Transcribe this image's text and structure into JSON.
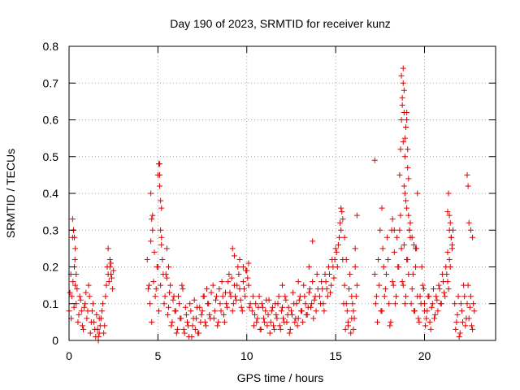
{
  "chart_data": {
    "type": "scatter",
    "title": "Day 190 of 2023, SRMTID for receiver kunz",
    "xlabel": "GPS time / hours",
    "ylabel": "SRMTID / TECUs",
    "xlim": [
      0,
      24
    ],
    "ylim": [
      0,
      0.8
    ],
    "xticks": [
      0,
      5,
      10,
      15,
      20
    ],
    "xtick_labels": [
      "0",
      "5",
      "10",
      "15",
      "20"
    ],
    "yticks": [
      0,
      0.1,
      0.2,
      0.3,
      0.4,
      0.5,
      0.6,
      0.7,
      0.8
    ],
    "ytick_labels": [
      "0",
      "0.1",
      "0.2",
      "0.3",
      "0.4",
      "0.5",
      "0.6",
      "0.7",
      "0.8"
    ],
    "grid": true,
    "marker": "+",
    "color": "#e00000",
    "series": [
      {
        "name": "SRMTID",
        "x": [
          0.0,
          0.1,
          0.15,
          0.2,
          0.25,
          0.3,
          0.35,
          0.4,
          0.5,
          0.6,
          0.7,
          0.8,
          0.9,
          1.0,
          1.1,
          1.2,
          1.3,
          1.4,
          1.5,
          1.6,
          1.7,
          1.8,
          1.9,
          2.0,
          2.1,
          2.2,
          2.3,
          2.4,
          2.5,
          0.05,
          0.12,
          0.22,
          0.28,
          0.33,
          0.45,
          0.55,
          0.65,
          0.75,
          0.85,
          0.95,
          1.05,
          1.15,
          1.25,
          1.35,
          1.45,
          1.55,
          1.65,
          1.75,
          1.85,
          1.95,
          2.05,
          2.15,
          2.25,
          2.35,
          2.45,
          0.2,
          0.25,
          0.3,
          0.35,
          0.4,
          1.6,
          1.7,
          1.65,
          2.2,
          2.3,
          2.35,
          4.4,
          4.5,
          4.6,
          4.7,
          4.8,
          4.9,
          5.0,
          5.1,
          5.2,
          5.3,
          5.4,
          5.5,
          5.6,
          5.7,
          5.8,
          5.9,
          6.0,
          6.1,
          6.2,
          6.3,
          6.4,
          6.5,
          6.6,
          6.7,
          6.8,
          6.9,
          7.0,
          7.1,
          7.2,
          7.3,
          7.4,
          7.5,
          7.6,
          7.7,
          7.8,
          7.9,
          8.0,
          4.45,
          4.55,
          4.65,
          4.75,
          4.85,
          4.95,
          5.05,
          5.15,
          5.25,
          5.35,
          5.45,
          5.55,
          5.65,
          5.75,
          5.85,
          5.95,
          6.05,
          6.15,
          6.25,
          6.35,
          6.45,
          6.55,
          6.65,
          6.75,
          6.85,
          6.95,
          7.05,
          7.15,
          7.25,
          7.35,
          7.45,
          7.55,
          7.65,
          7.75,
          7.85,
          7.95,
          4.6,
          4.65,
          4.7,
          5.0,
          5.05,
          5.1,
          5.1,
          5.15,
          5.2,
          5.15,
          5.2,
          5.5,
          5.6,
          8.1,
          8.2,
          8.3,
          8.4,
          8.5,
          8.6,
          8.7,
          8.8,
          8.9,
          9.0,
          9.1,
          9.2,
          9.3,
          9.4,
          9.5,
          9.6,
          9.7,
          9.8,
          9.9,
          10.0,
          10.1,
          10.2,
          8.15,
          8.25,
          8.35,
          8.45,
          8.55,
          8.65,
          8.75,
          8.85,
          8.95,
          9.05,
          9.15,
          9.25,
          9.35,
          9.45,
          9.55,
          9.65,
          9.75,
          9.85,
          9.95,
          10.05,
          10.15,
          9.2,
          9.3,
          9.6,
          9.8,
          10.0,
          10.1,
          10.3,
          10.4,
          10.5,
          10.6,
          10.7,
          10.8,
          10.9,
          11.0,
          11.1,
          11.2,
          11.3,
          11.4,
          11.5,
          11.6,
          11.7,
          11.8,
          11.9,
          12.0,
          12.1,
          12.2,
          12.3,
          12.4,
          12.5,
          12.6,
          12.7,
          12.8,
          12.9,
          13.0,
          13.1,
          13.2,
          13.3,
          13.4,
          13.5,
          13.6,
          13.7,
          13.8,
          13.9,
          14.0,
          10.35,
          10.45,
          10.55,
          10.65,
          10.75,
          10.85,
          10.95,
          11.05,
          11.15,
          11.25,
          11.35,
          11.45,
          11.55,
          11.65,
          11.75,
          11.85,
          11.95,
          12.05,
          12.15,
          12.25,
          12.35,
          12.45,
          12.55,
          12.65,
          12.75,
          12.85,
          12.95,
          13.05,
          13.15,
          13.25,
          13.35,
          13.45,
          13.55,
          13.65,
          13.75,
          13.85,
          13.95,
          13.7,
          13.5,
          12.9,
          12.0,
          14.1,
          14.2,
          14.3,
          14.4,
          14.5,
          14.6,
          14.7,
          14.8,
          14.9,
          15.0,
          15.1,
          15.2,
          15.3,
          15.4,
          15.5,
          15.6,
          15.7,
          15.8,
          15.9,
          16.0,
          16.1,
          16.2,
          14.15,
          14.25,
          14.35,
          14.45,
          14.55,
          14.65,
          14.75,
          14.85,
          14.95,
          15.05,
          15.15,
          15.25,
          15.35,
          15.45,
          15.55,
          15.65,
          15.75,
          15.85,
          15.95,
          16.05,
          16.15,
          15.3,
          15.4,
          15.5,
          15.6,
          15.7,
          16.1,
          16.2,
          15.9,
          16.0,
          17.2,
          17.3,
          17.4,
          17.5,
          17.6,
          17.7,
          17.8,
          17.9,
          18.0,
          18.1,
          18.2,
          18.3,
          18.4,
          18.5,
          18.6,
          18.7,
          18.8,
          18.9,
          19.0,
          19.1,
          19.2,
          19.3,
          19.4,
          19.5,
          19.6,
          19.7,
          19.8,
          19.9,
          20.0,
          17.25,
          17.35,
          17.45,
          17.55,
          17.65,
          17.75,
          17.85,
          17.95,
          18.05,
          18.15,
          18.25,
          18.35,
          18.45,
          18.55,
          18.65,
          18.75,
          18.85,
          18.95,
          19.05,
          19.15,
          19.25,
          19.35,
          19.45,
          19.55,
          19.65,
          19.75,
          19.85,
          19.95,
          17.2,
          17.6,
          18.2,
          18.3,
          18.6,
          18.65,
          18.7,
          18.7,
          18.75,
          18.8,
          18.8,
          18.85,
          18.85,
          18.9,
          18.9,
          18.95,
          19.0,
          19.0,
          19.05,
          19.05,
          19.1,
          18.8,
          18.75,
          18.85,
          18.9,
          18.95,
          19.0,
          19.1,
          19.15,
          19.2,
          19.3,
          19.4,
          19.5,
          19.6,
          20.0,
          20.1,
          20.2,
          20.3,
          20.4,
          20.5,
          20.6,
          20.7,
          20.8,
          20.9,
          21.0,
          21.1,
          21.2,
          21.3,
          21.4,
          21.5,
          21.6,
          20.05,
          20.15,
          20.25,
          20.35,
          20.45,
          20.55,
          20.65,
          20.75,
          20.85,
          20.95,
          21.05,
          21.15,
          21.25,
          21.35,
          21.45,
          21.55,
          21.3,
          21.35,
          21.4,
          21.45,
          21.4,
          21.5,
          21.55,
          21.3,
          21.7,
          21.8,
          21.9,
          22.0,
          22.1,
          22.2,
          22.3,
          22.4,
          22.5,
          22.6,
          22.7,
          22.8,
          21.75,
          21.85,
          21.95,
          22.05,
          22.15,
          22.25,
          22.35,
          22.45,
          22.55,
          22.65,
          22.75,
          22.4,
          22.45,
          22.5,
          22.6,
          22.7
        ],
        "y": [
          0.08,
          0.18,
          0.12,
          0.28,
          0.3,
          0.2,
          0.15,
          0.1,
          0.05,
          0.12,
          0.08,
          0.03,
          0.1,
          0.06,
          0.15,
          0.02,
          0.08,
          0.05,
          0.01,
          0.03,
          0.02,
          0.06,
          0.1,
          0.04,
          0.15,
          0.18,
          0.2,
          0.17,
          0.19,
          0.13,
          0.06,
          0.16,
          0.09,
          0.22,
          0.14,
          0.07,
          0.11,
          0.04,
          0.09,
          0.13,
          0.08,
          0.12,
          0.05,
          0.1,
          0.03,
          0.07,
          0.0,
          0.04,
          0.08,
          0.02,
          0.12,
          0.2,
          0.16,
          0.21,
          0.14,
          0.33,
          0.3,
          0.28,
          0.25,
          0.18,
          0.03,
          0.06,
          0.01,
          0.25,
          0.22,
          0.18,
          0.22,
          0.15,
          0.27,
          0.34,
          0.24,
          0.14,
          0.2,
          0.45,
          0.28,
          0.18,
          0.12,
          0.25,
          0.09,
          0.15,
          0.05,
          0.12,
          0.08,
          0.03,
          0.1,
          0.06,
          0.14,
          0.02,
          0.07,
          0.04,
          0.1,
          0.01,
          0.06,
          0.03,
          0.09,
          0.02,
          0.05,
          0.08,
          0.12,
          0.04,
          0.1,
          0.07,
          0.13,
          0.14,
          0.1,
          0.05,
          0.16,
          0.12,
          0.2,
          0.08,
          0.15,
          0.22,
          0.1,
          0.18,
          0.07,
          0.13,
          0.04,
          0.11,
          0.08,
          0.02,
          0.12,
          0.06,
          0.15,
          0.03,
          0.09,
          0.05,
          0.01,
          0.08,
          0.04,
          0.11,
          0.06,
          0.02,
          0.09,
          0.07,
          0.12,
          0.05,
          0.14,
          0.1,
          0.06,
          0.4,
          0.33,
          0.3,
          0.45,
          0.48,
          0.48,
          0.42,
          0.38,
          0.36,
          0.3,
          0.26,
          0.17,
          0.2,
          0.15,
          0.08,
          0.12,
          0.05,
          0.1,
          0.16,
          0.07,
          0.13,
          0.09,
          0.18,
          0.12,
          0.08,
          0.15,
          0.11,
          0.2,
          0.14,
          0.09,
          0.16,
          0.12,
          0.19,
          0.15,
          0.1,
          0.06,
          0.11,
          0.04,
          0.14,
          0.08,
          0.12,
          0.05,
          0.1,
          0.16,
          0.13,
          0.17,
          0.1,
          0.12,
          0.15,
          0.18,
          0.11,
          0.08,
          0.14,
          0.19,
          0.17,
          0.09,
          0.25,
          0.23,
          0.22,
          0.2,
          0.19,
          0.21,
          0.08,
          0.04,
          0.1,
          0.06,
          0.12,
          0.03,
          0.09,
          0.05,
          0.11,
          0.07,
          0.02,
          0.08,
          0.04,
          0.1,
          0.06,
          0.12,
          0.03,
          0.09,
          0.05,
          0.11,
          0.07,
          0.02,
          0.08,
          0.13,
          0.05,
          0.1,
          0.06,
          0.12,
          0.08,
          0.15,
          0.1,
          0.07,
          0.13,
          0.09,
          0.16,
          0.11,
          0.08,
          0.14,
          0.12,
          0.07,
          0.05,
          0.09,
          0.03,
          0.1,
          0.06,
          0.08,
          0.04,
          0.11,
          0.05,
          0.09,
          0.03,
          0.07,
          0.1,
          0.04,
          0.08,
          0.06,
          0.12,
          0.05,
          0.09,
          0.03,
          0.07,
          0.1,
          0.06,
          0.04,
          0.11,
          0.08,
          0.05,
          0.12,
          0.07,
          0.09,
          0.14,
          0.1,
          0.06,
          0.12,
          0.18,
          0.27,
          0.2,
          0.16,
          0.15,
          0.12,
          0.16,
          0.1,
          0.18,
          0.14,
          0.2,
          0.13,
          0.22,
          0.17,
          0.25,
          0.2,
          0.28,
          0.3,
          0.22,
          0.15,
          0.1,
          0.05,
          0.18,
          0.12,
          0.08,
          0.2,
          0.15,
          0.1,
          0.14,
          0.08,
          0.16,
          0.12,
          0.18,
          0.15,
          0.2,
          0.22,
          0.24,
          0.26,
          0.32,
          0.35,
          0.1,
          0.03,
          0.08,
          0.14,
          0.02,
          0.1,
          0.06,
          0.12,
          0.36,
          0.33,
          0.28,
          0.22,
          0.04,
          0.25,
          0.34,
          0.06,
          0.03,
          0.18,
          0.12,
          0.22,
          0.3,
          0.08,
          0.2,
          0.14,
          0.28,
          0.1,
          0.05,
          0.16,
          0.24,
          0.12,
          0.2,
          0.3,
          0.25,
          0.15,
          0.1,
          0.22,
          0.18,
          0.28,
          0.14,
          0.08,
          0.2,
          0.12,
          0.05,
          0.1,
          0.15,
          0.08,
          0.1,
          0.05,
          0.15,
          0.08,
          0.25,
          0.12,
          0.18,
          0.22,
          0.04,
          0.3,
          0.15,
          0.1,
          0.28,
          0.2,
          0.34,
          0.16,
          0.26,
          0.12,
          0.22,
          0.3,
          0.1,
          0.18,
          0.08,
          0.25,
          0.06,
          0.12,
          0.2,
          0.14,
          0.49,
          0.36,
          0.33,
          0.3,
          0.45,
          0.52,
          0.6,
          0.72,
          0.66,
          0.7,
          0.74,
          0.68,
          0.62,
          0.55,
          0.5,
          0.58,
          0.62,
          0.6,
          0.52,
          0.47,
          0.44,
          0.54,
          0.64,
          0.42,
          0.4,
          0.38,
          0.36,
          0.34,
          0.3,
          0.32,
          0.28,
          0.26,
          0.25,
          0.4,
          0.1,
          0.06,
          0.12,
          0.05,
          0.09,
          0.14,
          0.07,
          0.11,
          0.15,
          0.1,
          0.18,
          0.13,
          0.2,
          0.16,
          0.22,
          0.28,
          0.3,
          0.04,
          0.08,
          0.12,
          0.03,
          0.1,
          0.06,
          0.12,
          0.08,
          0.14,
          0.1,
          0.16,
          0.12,
          0.18,
          0.14,
          0.2,
          0.25,
          0.35,
          0.4,
          0.34,
          0.32,
          0.3,
          0.28,
          0.26,
          0.24,
          0.1,
          0.05,
          0.12,
          0.02,
          0.08,
          0.15,
          0.04,
          0.1,
          0.06,
          0.12,
          0.03,
          0.08,
          0.03,
          0.07,
          0.01,
          0.1,
          0.05,
          0.12,
          0.06,
          0.15,
          0.09,
          0.04,
          0.1,
          0.45,
          0.42,
          0.32,
          0.3,
          0.28
        ]
      }
    ]
  }
}
